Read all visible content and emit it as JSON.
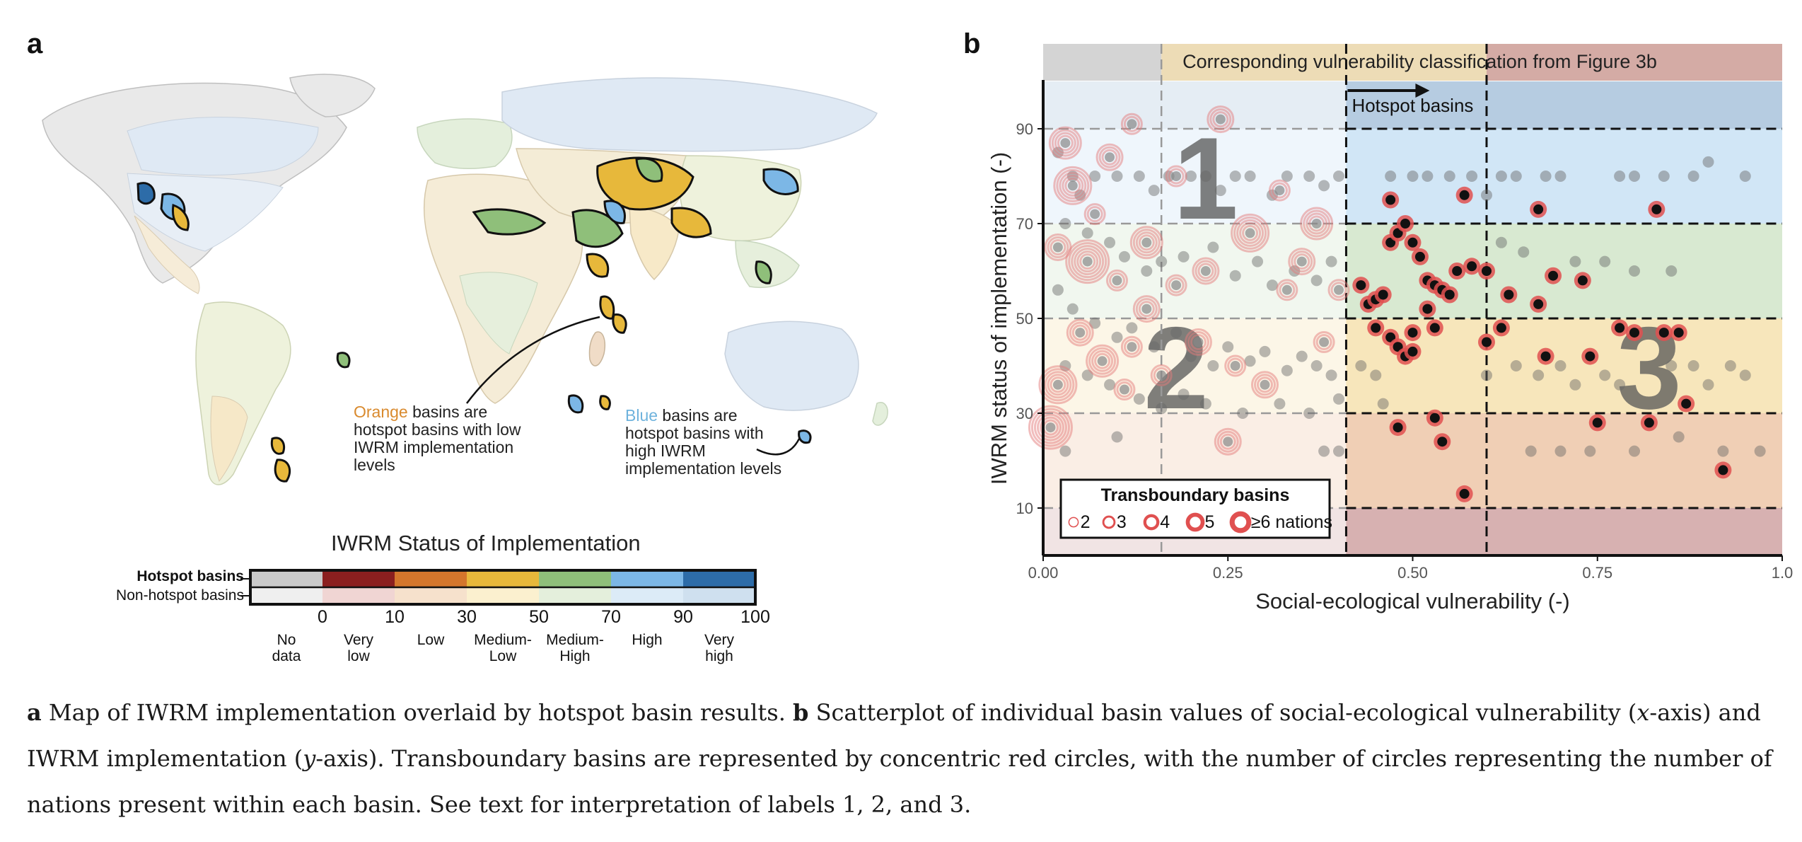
{
  "panel_a": {
    "letter": "a",
    "note_orange": {
      "highlight": "Orange",
      "rest": " basins are hotspot basins with low IWRM implementation levels",
      "lines": [
        "Orange basins",
        "are hotspot basins",
        "with low IWRM",
        "implementation",
        "levels"
      ]
    },
    "note_blue": {
      "highlight": "Blue",
      "rest": " basins are hotspot basins with high IWRM implementation levels",
      "lines": [
        "Blue basins are",
        "hotspot basins with",
        "high IWRM",
        "implementation",
        "levels"
      ]
    },
    "legend": {
      "title": "IWRM Status of Implementation",
      "row_hotspot": "Hotspot basins",
      "row_nonhotspot": "Non-hotspot basins",
      "ticks": [
        "0",
        "10",
        "30",
        "50",
        "70",
        "90",
        "100"
      ],
      "classes": [
        {
          "label": "No\ndata",
          "hot": "#c9c9c9",
          "non": "#efefef"
        },
        {
          "label": "Very\nlow",
          "hot": "#8b1f1f",
          "non": "#f0d5d3"
        },
        {
          "label": "Low",
          "hot": "#d4762c",
          "non": "#f6e1cc"
        },
        {
          "label": "Medium-\nLow",
          "hot": "#e7b83b",
          "non": "#fbf0cf"
        },
        {
          "label": "Medium-\nHigh",
          "hot": "#8fbf7a",
          "non": "#e4efdc"
        },
        {
          "label": "High",
          "hot": "#7cb7e6",
          "non": "#dcebf7"
        },
        {
          "label": "Very\nhigh",
          "hot": "#2d6ca8",
          "non": "#cfe0ef"
        }
      ]
    }
  },
  "panel_b": {
    "letter": "b",
    "top_banner": "Corresponding vulnerability classification from Figure 3b",
    "hotspot_arrow_label": "Hotspot basins",
    "region_labels": [
      "1",
      "2",
      "3"
    ],
    "legend": {
      "title": "Transboundary basins",
      "items": [
        "2",
        "3",
        "4",
        "5",
        "≥6 nations"
      ]
    }
  },
  "chart_data": {
    "type": "scatter",
    "title": "",
    "xlabel": "Social-ecological vulnerability (-)",
    "ylabel": "IWRM status of implementation (-)",
    "xlim": [
      0,
      1
    ],
    "ylim": [
      0,
      100
    ],
    "xticks": [
      "0.00",
      "0.25",
      "0.50",
      "0.75",
      "1.0"
    ],
    "yticks": [
      "10",
      "30",
      "50",
      "70",
      "90"
    ],
    "hotspot_x_threshold": 0.41,
    "vertical_thresholds": [
      0.16,
      0.41,
      0.6
    ],
    "horizontal_thresholds": [
      10,
      30,
      50,
      70,
      90
    ],
    "bands": [
      {
        "from": 0,
        "to": 10,
        "color": "#8b1f1f"
      },
      {
        "from": 10,
        "to": 30,
        "color": "#d4762c"
      },
      {
        "from": 30,
        "to": 50,
        "color": "#e7b83b"
      },
      {
        "from": 50,
        "to": 70,
        "color": "#8fbf7a"
      },
      {
        "from": 70,
        "to": 90,
        "color": "#7cb7e6"
      },
      {
        "from": 90,
        "to": 100,
        "color": "#2d6ca8"
      }
    ],
    "top_classes": [
      {
        "from": 0,
        "to": 0.16,
        "color": "#c9c9c9"
      },
      {
        "from": 0.16,
        "to": 0.6,
        "color": "#e8d3a4"
      },
      {
        "from": 0.6,
        "to": 1.0,
        "color": "#c9968e"
      }
    ],
    "hotspot_points": [
      [
        0.43,
        57
      ],
      [
        0.44,
        53
      ],
      [
        0.45,
        54
      ],
      [
        0.46,
        55
      ],
      [
        0.45,
        48
      ],
      [
        0.47,
        46
      ],
      [
        0.48,
        44
      ],
      [
        0.49,
        42
      ],
      [
        0.5,
        43
      ],
      [
        0.47,
        66
      ],
      [
        0.48,
        68
      ],
      [
        0.49,
        70
      ],
      [
        0.5,
        66
      ],
      [
        0.51,
        63
      ],
      [
        0.52,
        58
      ],
      [
        0.53,
        57
      ],
      [
        0.54,
        56
      ],
      [
        0.55,
        55
      ],
      [
        0.56,
        60
      ],
      [
        0.58,
        61
      ],
      [
        0.6,
        60
      ],
      [
        0.47,
        75
      ],
      [
        0.57,
        76
      ],
      [
        0.52,
        52
      ],
      [
        0.53,
        48
      ],
      [
        0.5,
        47
      ],
      [
        0.48,
        27
      ],
      [
        0.53,
        29
      ],
      [
        0.54,
        24
      ],
      [
        0.57,
        13
      ],
      [
        0.62,
        48
      ],
      [
        0.67,
        53
      ],
      [
        0.68,
        42
      ],
      [
        0.69,
        59
      ],
      [
        0.73,
        58
      ],
      [
        0.74,
        42
      ],
      [
        0.75,
        28
      ],
      [
        0.78,
        48
      ],
      [
        0.8,
        47
      ],
      [
        0.82,
        28
      ],
      [
        0.84,
        47
      ],
      [
        0.86,
        47
      ],
      [
        0.87,
        32
      ],
      [
        0.92,
        18
      ],
      [
        0.67,
        73
      ],
      [
        0.83,
        73
      ],
      [
        0.6,
        45
      ],
      [
        0.63,
        55
      ]
    ],
    "transboundary_points": [
      {
        "x": 0.03,
        "y": 87,
        "n": 4
      },
      {
        "x": 0.04,
        "y": 78,
        "n": 5
      },
      {
        "x": 0.09,
        "y": 84,
        "n": 3
      },
      {
        "x": 0.12,
        "y": 91,
        "n": 2
      },
      {
        "x": 0.02,
        "y": 65,
        "n": 3
      },
      {
        "x": 0.06,
        "y": 62,
        "n": 6
      },
      {
        "x": 0.1,
        "y": 58,
        "n": 2
      },
      {
        "x": 0.14,
        "y": 66,
        "n": 4
      },
      {
        "x": 0.18,
        "y": 57,
        "n": 2
      },
      {
        "x": 0.22,
        "y": 60,
        "n": 3
      },
      {
        "x": 0.28,
        "y": 68,
        "n": 5
      },
      {
        "x": 0.33,
        "y": 56,
        "n": 2
      },
      {
        "x": 0.05,
        "y": 47,
        "n": 3
      },
      {
        "x": 0.08,
        "y": 41,
        "n": 4
      },
      {
        "x": 0.12,
        "y": 44,
        "n": 2
      },
      {
        "x": 0.02,
        "y": 36,
        "n": 5
      },
      {
        "x": 0.16,
        "y": 38,
        "n": 2
      },
      {
        "x": 0.21,
        "y": 45,
        "n": 3
      },
      {
        "x": 0.26,
        "y": 40,
        "n": 2
      },
      {
        "x": 0.3,
        "y": 36,
        "n": 3
      },
      {
        "x": 0.25,
        "y": 24,
        "n": 3
      },
      {
        "x": 0.01,
        "y": 27,
        "n": 6
      },
      {
        "x": 0.18,
        "y": 80,
        "n": 2
      },
      {
        "x": 0.24,
        "y": 92,
        "n": 3
      },
      {
        "x": 0.32,
        "y": 77,
        "n": 2
      },
      {
        "x": 0.37,
        "y": 70,
        "n": 4
      },
      {
        "x": 0.38,
        "y": 45,
        "n": 2
      },
      {
        "x": 0.4,
        "y": 56,
        "n": 2
      },
      {
        "x": 0.07,
        "y": 72,
        "n": 2
      },
      {
        "x": 0.14,
        "y": 52,
        "n": 3
      },
      {
        "x": 0.11,
        "y": 35,
        "n": 2
      },
      {
        "x": 0.35,
        "y": 62,
        "n": 3
      }
    ],
    "non_hotspot_points": [
      [
        0.02,
        85
      ],
      [
        0.04,
        80
      ],
      [
        0.05,
        76
      ],
      [
        0.07,
        80
      ],
      [
        0.1,
        80
      ],
      [
        0.13,
        80
      ],
      [
        0.15,
        77
      ],
      [
        0.17,
        80
      ],
      [
        0.2,
        80
      ],
      [
        0.22,
        80
      ],
      [
        0.24,
        77
      ],
      [
        0.26,
        80
      ],
      [
        0.28,
        80
      ],
      [
        0.31,
        76
      ],
      [
        0.33,
        80
      ],
      [
        0.36,
        80
      ],
      [
        0.38,
        78
      ],
      [
        0.4,
        80
      ],
      [
        0.03,
        70
      ],
      [
        0.06,
        68
      ],
      [
        0.09,
        66
      ],
      [
        0.11,
        63
      ],
      [
        0.14,
        60
      ],
      [
        0.16,
        62
      ],
      [
        0.19,
        63
      ],
      [
        0.23,
        65
      ],
      [
        0.26,
        59
      ],
      [
        0.29,
        62
      ],
      [
        0.31,
        57
      ],
      [
        0.34,
        60
      ],
      [
        0.37,
        58
      ],
      [
        0.39,
        62
      ],
      [
        0.02,
        56
      ],
      [
        0.04,
        52
      ],
      [
        0.07,
        49
      ],
      [
        0.1,
        46
      ],
      [
        0.12,
        48
      ],
      [
        0.15,
        44
      ],
      [
        0.18,
        47
      ],
      [
        0.2,
        42
      ],
      [
        0.23,
        40
      ],
      [
        0.25,
        44
      ],
      [
        0.28,
        41
      ],
      [
        0.3,
        43
      ],
      [
        0.33,
        39
      ],
      [
        0.35,
        42
      ],
      [
        0.37,
        40
      ],
      [
        0.39,
        38
      ],
      [
        0.03,
        40
      ],
      [
        0.06,
        38
      ],
      [
        0.09,
        36
      ],
      [
        0.13,
        33
      ],
      [
        0.16,
        31
      ],
      [
        0.19,
        34
      ],
      [
        0.22,
        32
      ],
      [
        0.27,
        30
      ],
      [
        0.32,
        32
      ],
      [
        0.36,
        30
      ],
      [
        0.4,
        33
      ],
      [
        0.03,
        22
      ],
      [
        0.1,
        25
      ],
      [
        0.38,
        22
      ],
      [
        0.4,
        22
      ],
      [
        0.47,
        80
      ],
      [
        0.5,
        80
      ],
      [
        0.52,
        80
      ],
      [
        0.55,
        80
      ],
      [
        0.58,
        80
      ],
      [
        0.6,
        76
      ],
      [
        0.62,
        80
      ],
      [
        0.64,
        80
      ],
      [
        0.68,
        80
      ],
      [
        0.7,
        80
      ],
      [
        0.78,
        80
      ],
      [
        0.8,
        80
      ],
      [
        0.84,
        80
      ],
      [
        0.88,
        80
      ],
      [
        0.95,
        80
      ],
      [
        0.9,
        83
      ],
      [
        0.62,
        66
      ],
      [
        0.65,
        64
      ],
      [
        0.72,
        62
      ],
      [
        0.76,
        62
      ],
      [
        0.8,
        60
      ],
      [
        0.85,
        60
      ],
      [
        0.6,
        38
      ],
      [
        0.64,
        40
      ],
      [
        0.67,
        38
      ],
      [
        0.7,
        40
      ],
      [
        0.72,
        36
      ],
      [
        0.76,
        38
      ],
      [
        0.78,
        36
      ],
      [
        0.85,
        40
      ],
      [
        0.88,
        40
      ],
      [
        0.9,
        36
      ],
      [
        0.93,
        40
      ],
      [
        0.95,
        38
      ],
      [
        0.66,
        22
      ],
      [
        0.7,
        22
      ],
      [
        0.74,
        22
      ],
      [
        0.8,
        22
      ],
      [
        0.86,
        25
      ],
      [
        0.92,
        22
      ],
      [
        0.97,
        22
      ],
      [
        0.43,
        40
      ],
      [
        0.45,
        38
      ],
      [
        0.46,
        32
      ]
    ]
  },
  "caption": {
    "a_label": "a",
    "a_text": " Map of IWRM implementation overlaid by hotspot basin results. ",
    "b_label": "b",
    "b_text_1": " Scatterplot of individual basin values of social-ecological vulnerability (",
    "x_italic": "x",
    "b_text_2": "-axis) and IWRM implementation (",
    "y_italic": "y",
    "b_text_3": "-axis). Transboundary basins are represented by concentric red circles, with the number of circles representing the number of nations present within each basin. See text for interpretation of labels 1, 2, and 3."
  }
}
